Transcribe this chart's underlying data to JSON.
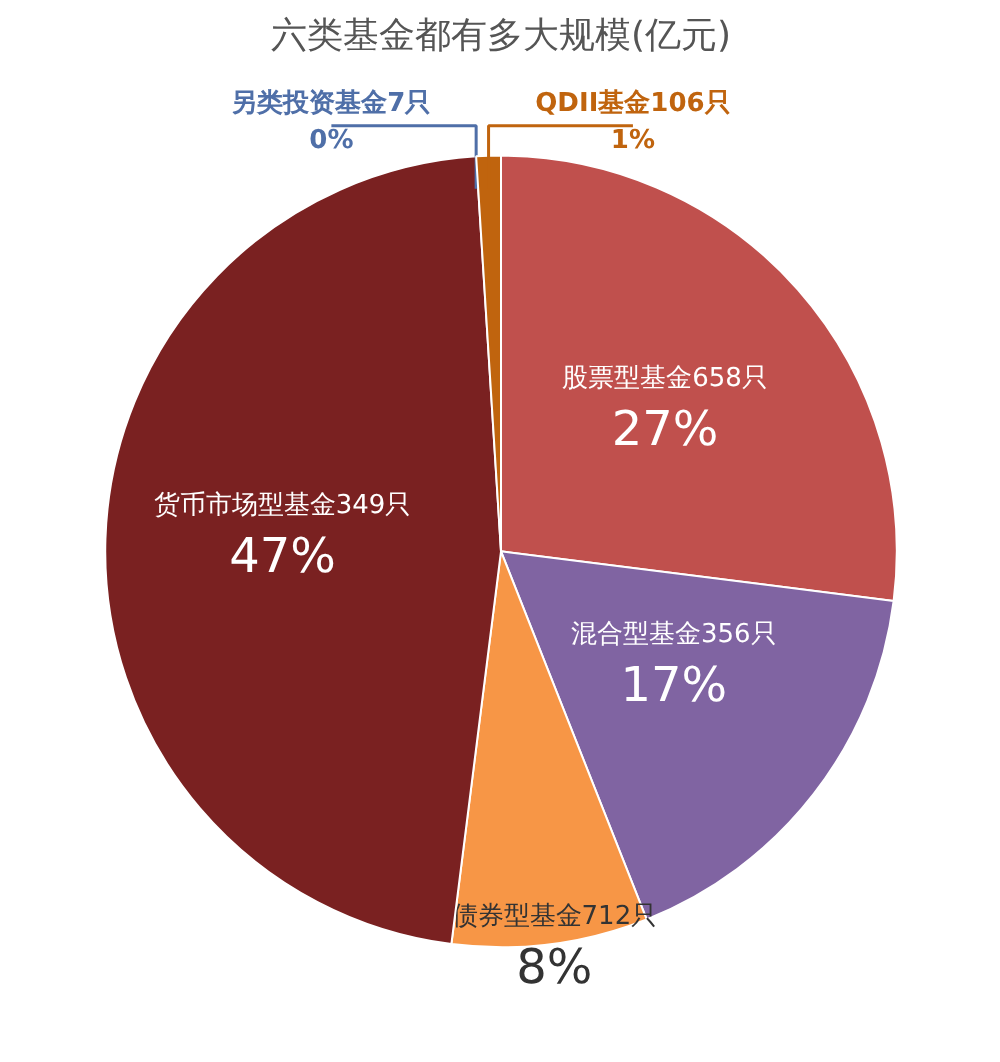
{
  "chart_data": {
    "type": "pie",
    "title": "六类基金都有多大规模(亿元)",
    "categories": [
      "股票型基金658只",
      "混合型基金356只",
      "债券型基金712只",
      "货币市场型基金349只",
      "另类投资基金7只",
      "QDII基金106只"
    ],
    "values": [
      27,
      17,
      8,
      47,
      0,
      1
    ],
    "colors": [
      "#c0504d",
      "#8064a2",
      "#f79646",
      "#7a2121",
      "#4f6fa8",
      "#c0640e"
    ],
    "value_labels": [
      "27%",
      "17%",
      "8%",
      "47%",
      "0%",
      "1%"
    ]
  }
}
